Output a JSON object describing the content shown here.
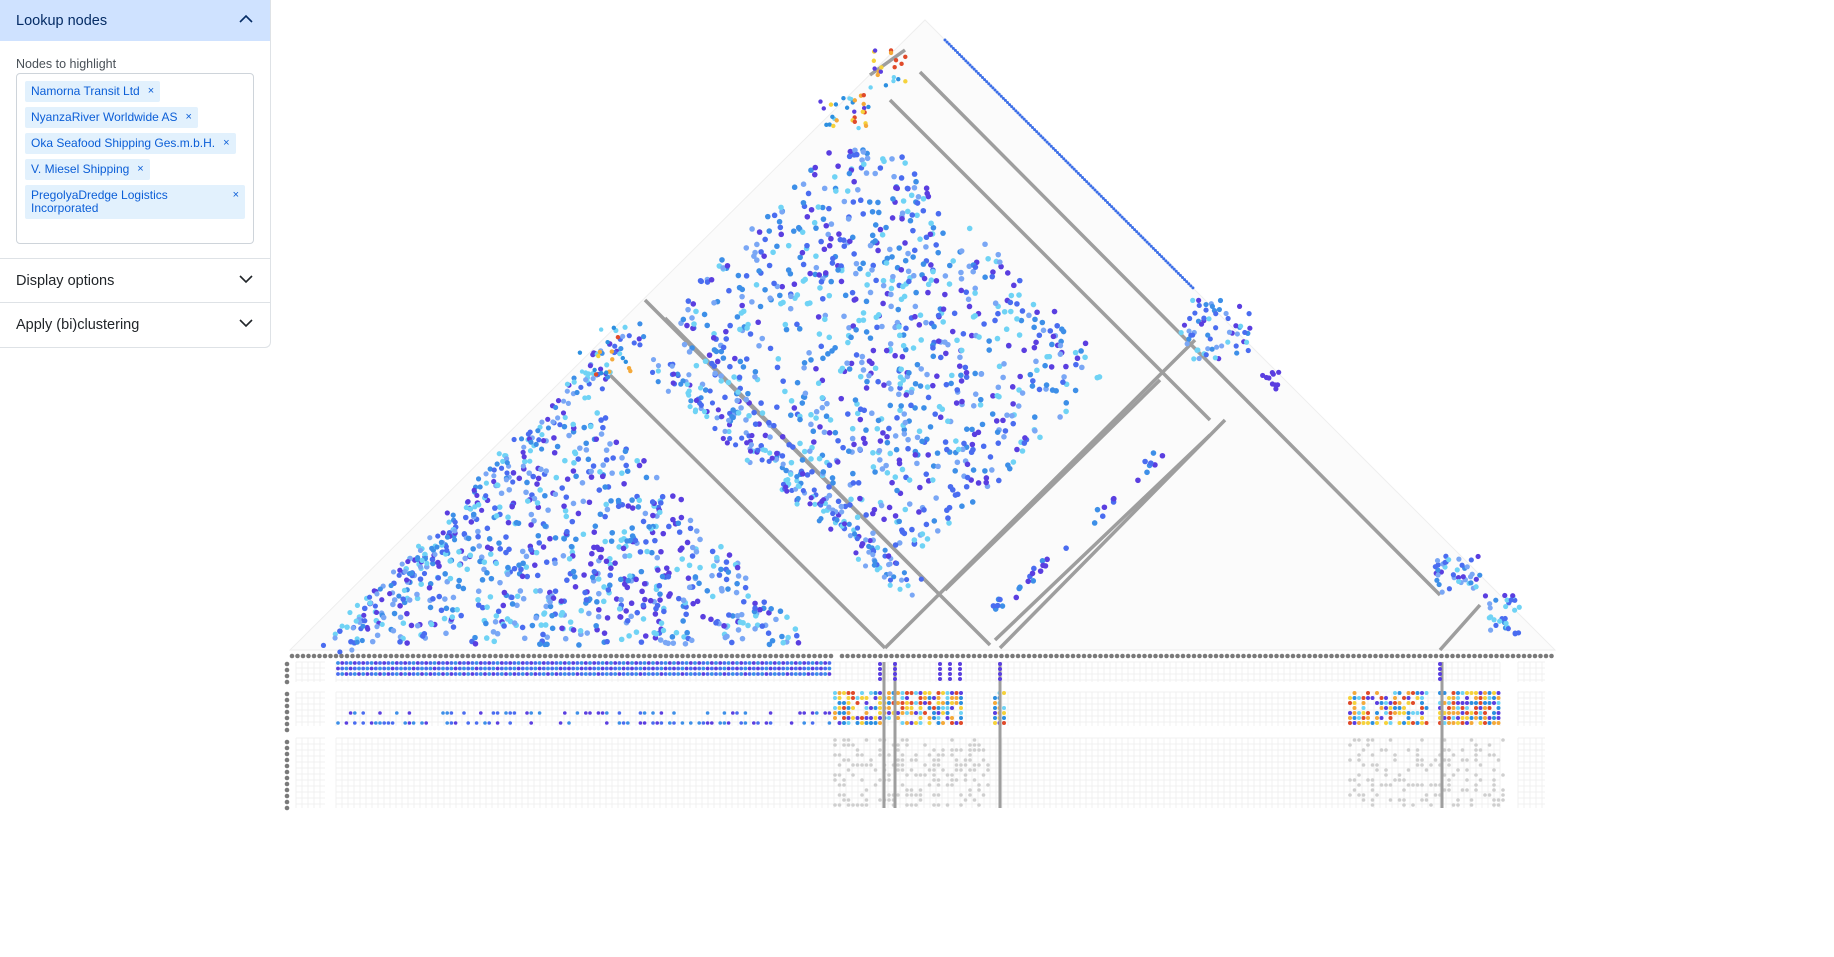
{
  "sidebar": {
    "lookup": {
      "title": "Lookup nodes",
      "expanded": true,
      "field_label": "Nodes to highlight"
    },
    "chips": [
      "Namorna Transit Ltd",
      "NyanzaRiver Worldwide AS",
      "Oka Seafood Shipping Ges.m.b.H.",
      "V. Miesel Shipping",
      "PregolyaDredge Logistics Incorporated"
    ],
    "display": {
      "title": "Display options",
      "expanded": false
    },
    "clustering": {
      "title": "Apply (bi)clustering",
      "expanded": false
    }
  },
  "colors": {
    "accent_header": "#cfe2ff",
    "chip_bg": "#e2f1fd",
    "chip_text": "#0b5ed7",
    "dot_palette": [
      "#5a3ee0",
      "#4a6cf0",
      "#3d8fe8",
      "#6fd3f5",
      "#7aa7f5"
    ],
    "heat_palette": [
      "#e04a2a",
      "#f4a93a",
      "#f5d23c",
      "#5a3ee0",
      "#6fd3f5",
      "#2c8fe0"
    ],
    "line_grey": "#9e9e9e",
    "row_node_grey": "#7a7a7a"
  }
}
